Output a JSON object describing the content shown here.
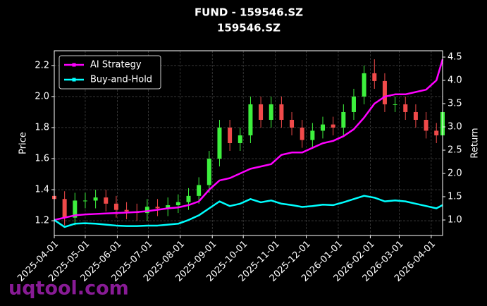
{
  "chart_data": {
    "type": "candlestick",
    "title": "FUND - 159546.SZ",
    "subtitle": "159546.SZ",
    "y_label": "Price",
    "y2_label": "Return",
    "watermark": "uqtool.com",
    "x": [
      "2025-04-01",
      "2025-04-11",
      "2025-04-21",
      "2025-05-01",
      "2025-05-11",
      "2025-05-21",
      "2025-05-31",
      "2025-06-10",
      "2025-06-20",
      "2025-06-30",
      "2025-07-10",
      "2025-07-20",
      "2025-07-30",
      "2025-08-09",
      "2025-08-19",
      "2025-08-29",
      "2025-09-08",
      "2025-09-18",
      "2025-09-28",
      "2025-10-08",
      "2025-10-18",
      "2025-10-28",
      "2025-11-07",
      "2025-11-17",
      "2025-11-27",
      "2025-12-07",
      "2025-12-17",
      "2025-12-27",
      "2026-01-06",
      "2026-01-16",
      "2026-01-26",
      "2026-02-05",
      "2026-02-15",
      "2026-02-25",
      "2026-03-07",
      "2026-03-17",
      "2026-03-27",
      "2026-04-06",
      "2026-04-12"
    ],
    "open": [
      1.36,
      1.34,
      1.22,
      1.33,
      1.33,
      1.35,
      1.31,
      1.27,
      1.26,
      1.25,
      1.29,
      1.28,
      1.3,
      1.32,
      1.36,
      1.43,
      1.6,
      1.8,
      1.7,
      1.75,
      1.95,
      1.85,
      1.95,
      1.85,
      1.8,
      1.72,
      1.78,
      1.82,
      1.8,
      1.9,
      2.0,
      2.15,
      2.1,
      1.95,
      1.95,
      1.9,
      1.85,
      1.78,
      1.75
    ],
    "high": [
      1.41,
      1.39,
      1.38,
      1.38,
      1.4,
      1.4,
      1.36,
      1.32,
      1.31,
      1.34,
      1.34,
      1.35,
      1.37,
      1.41,
      1.48,
      1.65,
      1.85,
      1.85,
      1.8,
      2.0,
      2.0,
      2.0,
      2.0,
      1.9,
      1.85,
      1.83,
      1.87,
      1.87,
      1.95,
      2.05,
      2.2,
      2.24,
      2.15,
      2.0,
      2.0,
      1.95,
      1.9,
      1.83,
      1.95
    ],
    "low": [
      1.29,
      1.17,
      1.17,
      1.28,
      1.28,
      1.26,
      1.22,
      1.21,
      1.2,
      1.2,
      1.23,
      1.23,
      1.25,
      1.27,
      1.31,
      1.38,
      1.55,
      1.65,
      1.65,
      1.7,
      1.8,
      1.8,
      1.8,
      1.75,
      1.67,
      1.67,
      1.73,
      1.75,
      1.75,
      1.85,
      1.95,
      2.05,
      1.9,
      1.9,
      1.85,
      1.8,
      1.73,
      1.7,
      1.7
    ],
    "close": [
      1.34,
      1.22,
      1.33,
      1.33,
      1.35,
      1.31,
      1.27,
      1.26,
      1.25,
      1.29,
      1.28,
      1.3,
      1.32,
      1.36,
      1.43,
      1.6,
      1.8,
      1.7,
      1.75,
      1.95,
      1.85,
      1.95,
      1.85,
      1.8,
      1.72,
      1.78,
      1.82,
      1.8,
      1.9,
      2.0,
      2.15,
      2.1,
      1.95,
      1.95,
      1.9,
      1.85,
      1.78,
      1.75,
      1.9
    ],
    "up_color": "#3df03d",
    "down_color": "#f04a4a",
    "series": [
      {
        "name": "AI Strategy",
        "color": "#ff00ff",
        "axis": "y2",
        "values": [
          1.0,
          1.05,
          1.1,
          1.12,
          1.13,
          1.14,
          1.15,
          1.16,
          1.17,
          1.19,
          1.22,
          1.25,
          1.27,
          1.32,
          1.4,
          1.65,
          1.85,
          1.9,
          2.0,
          2.1,
          2.15,
          2.2,
          2.4,
          2.45,
          2.45,
          2.55,
          2.65,
          2.7,
          2.8,
          2.95,
          3.2,
          3.5,
          3.65,
          3.7,
          3.7,
          3.75,
          3.8,
          4.0,
          4.45
        ]
      },
      {
        "name": "Buy-and-Hold",
        "color": "#00ffff",
        "axis": "y2",
        "values": [
          1.0,
          0.85,
          0.92,
          0.93,
          0.92,
          0.9,
          0.88,
          0.87,
          0.87,
          0.88,
          0.88,
          0.9,
          0.92,
          1.0,
          1.1,
          1.25,
          1.4,
          1.3,
          1.35,
          1.45,
          1.38,
          1.42,
          1.35,
          1.32,
          1.28,
          1.3,
          1.33,
          1.32,
          1.38,
          1.45,
          1.52,
          1.48,
          1.4,
          1.42,
          1.4,
          1.35,
          1.3,
          1.25,
          1.32
        ]
      }
    ],
    "xlim": [
      "2025-04-01",
      "2026-04-12"
    ],
    "xticks": [
      "2025-04-01",
      "2025-05-01",
      "2025-06-01",
      "2025-07-01",
      "2025-08-01",
      "2025-09-01",
      "2025-10-01",
      "2025-11-01",
      "2025-12-01",
      "2026-01-01",
      "2026-02-01",
      "2026-03-01",
      "2026-04-01"
    ],
    "ylim": [
      1.105,
      2.295
    ],
    "yticks": [
      1.2,
      1.4,
      1.6,
      1.8,
      {
        "value": 2,
        "label": "2.0"
      },
      2.2
    ],
    "y2lim": [
      0.667,
      4.636
    ],
    "y2ticks": [
      {
        "value": 1,
        "label": "1.0"
      },
      1.5,
      {
        "value": 2,
        "label": "2.0"
      },
      2.5,
      {
        "value": 3,
        "label": "3.0"
      },
      3.5,
      {
        "value": 4,
        "label": "4.0"
      },
      4.5
    ],
    "grid": true,
    "legend": "upper left"
  }
}
